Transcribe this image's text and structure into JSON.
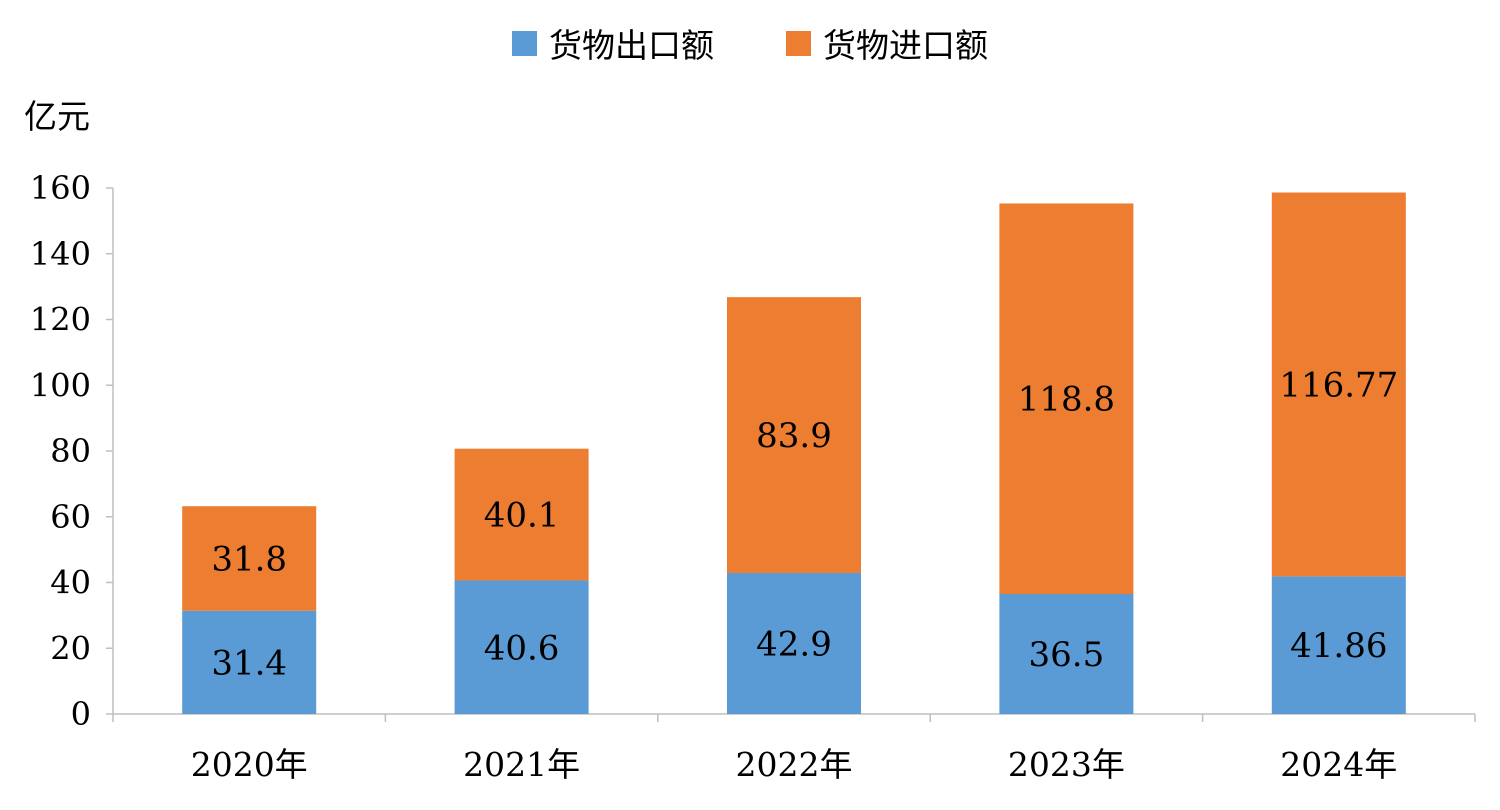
{
  "chart_data": {
    "type": "bar",
    "stacked": true,
    "categories": [
      "2020年",
      "2021年",
      "2022年",
      "2023年",
      "2024年"
    ],
    "series": [
      {
        "name": "货物出口额",
        "values": [
          31.4,
          40.6,
          42.9,
          36.5,
          41.86
        ],
        "labels": [
          "31.4",
          "40.6",
          "42.9",
          "36.5",
          "41.86"
        ],
        "color": "#5B9BD5"
      },
      {
        "name": "货物进口额",
        "values": [
          31.8,
          40.1,
          83.9,
          118.8,
          116.77
        ],
        "labels": [
          "31.8",
          "40.1",
          "83.9",
          "118.8",
          "116.77"
        ],
        "color": "#ED7D31"
      }
    ],
    "ylabel": "亿元",
    "ylim": [
      0,
      160
    ],
    "yticks": [
      0,
      20,
      40,
      60,
      80,
      100,
      120,
      140,
      160
    ],
    "grid": false,
    "legend_position": "top-center"
  }
}
